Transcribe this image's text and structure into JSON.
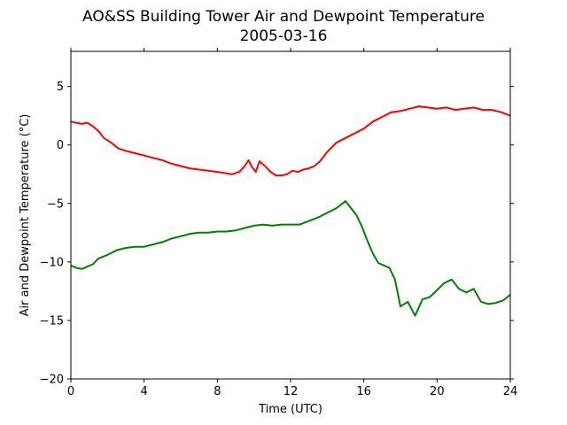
{
  "chart_data": {
    "type": "line",
    "title": "AO&SS Building Tower Air and Dewpoint Temperature",
    "subtitle": "2005-03-16",
    "xlabel": "Time (UTC)",
    "ylabel": "Air and Dewpoint Temperature (°C)",
    "xlim": [
      0,
      24
    ],
    "ylim": [
      -20,
      8
    ],
    "x_ticks": [
      0,
      4,
      8,
      12,
      16,
      20,
      24
    ],
    "y_ticks": [
      5,
      0,
      -5,
      -10,
      -15,
      -20
    ],
    "x_tick_labels": [
      "0",
      "4",
      "8",
      "12",
      "16",
      "20",
      "24"
    ],
    "y_tick_labels": [
      "5",
      "0",
      "−5",
      "−10",
      "−15",
      "−20"
    ],
    "grid": false,
    "series": [
      {
        "color": "#ff0000",
        "x": [
          0,
          0.3,
          0.6,
          0.9,
          1.2,
          1.5,
          1.8,
          2.2,
          2.6,
          3.0,
          3.5,
          4.0,
          4.5,
          5.0,
          5.5,
          6.0,
          6.5,
          7.0,
          7.5,
          8.0,
          8.4,
          8.8,
          9.2,
          9.5,
          9.7,
          9.9,
          10.1,
          10.3,
          10.6,
          10.9,
          11.2,
          11.5,
          11.8,
          12.1,
          12.4,
          12.7,
          13.0,
          13.3,
          13.6,
          14.0,
          14.5,
          15.0,
          15.5,
          16.0,
          16.5,
          17.0,
          17.5,
          18.0,
          18.5,
          19.0,
          19.5,
          20.0,
          20.5,
          21.0,
          21.5,
          22.0,
          22.5,
          23.0,
          23.5,
          24.0
        ],
        "y": [
          2.0,
          1.9,
          1.8,
          1.9,
          1.6,
          1.2,
          0.6,
          0.2,
          -0.3,
          -0.5,
          -0.7,
          -0.9,
          -1.1,
          -1.3,
          -1.6,
          -1.8,
          -2.0,
          -2.1,
          -2.2,
          -2.3,
          -2.4,
          -2.5,
          -2.3,
          -1.8,
          -1.3,
          -1.9,
          -2.3,
          -1.4,
          -1.8,
          -2.3,
          -2.6,
          -2.6,
          -2.5,
          -2.2,
          -2.3,
          -2.1,
          -2.0,
          -1.8,
          -1.4,
          -0.6,
          0.2,
          0.6,
          1.0,
          1.4,
          2.0,
          2.4,
          2.8,
          2.9,
          3.1,
          3.3,
          3.2,
          3.1,
          3.2,
          3.0,
          3.1,
          3.2,
          3.0,
          3.0,
          2.8,
          2.5
        ]
      },
      {
        "color": "#008000",
        "x": [
          0,
          0.3,
          0.6,
          0.9,
          1.2,
          1.5,
          2.0,
          2.5,
          3.0,
          3.5,
          4.0,
          4.5,
          5.0,
          5.5,
          6.0,
          6.5,
          7.0,
          7.5,
          8.0,
          8.5,
          9.0,
          9.5,
          10.0,
          10.5,
          11.0,
          11.5,
          12.0,
          12.5,
          13.0,
          13.5,
          14.0,
          14.5,
          15.0,
          15.3,
          15.6,
          15.9,
          16.2,
          16.5,
          16.8,
          17.1,
          17.4,
          17.7,
          18.0,
          18.4,
          18.8,
          19.2,
          19.6,
          20.0,
          20.4,
          20.8,
          21.2,
          21.6,
          22.0,
          22.4,
          22.8,
          23.2,
          23.6,
          24.0
        ],
        "y": [
          -10.3,
          -10.5,
          -10.6,
          -10.4,
          -10.2,
          -9.7,
          -9.4,
          -9.0,
          -8.8,
          -8.7,
          -8.7,
          -8.5,
          -8.3,
          -8.0,
          -7.8,
          -7.6,
          -7.5,
          -7.5,
          -7.4,
          -7.4,
          -7.3,
          -7.1,
          -6.9,
          -6.8,
          -6.9,
          -6.8,
          -6.8,
          -6.8,
          -6.5,
          -6.2,
          -5.8,
          -5.4,
          -4.8,
          -5.4,
          -6.0,
          -7.0,
          -8.2,
          -9.3,
          -10.1,
          -10.3,
          -10.5,
          -11.5,
          -13.8,
          -13.4,
          -14.6,
          -13.2,
          -13.0,
          -12.4,
          -11.8,
          -11.5,
          -12.3,
          -12.6,
          -12.3,
          -13.4,
          -13.6,
          -13.5,
          -13.3,
          -12.8
        ]
      }
    ]
  }
}
